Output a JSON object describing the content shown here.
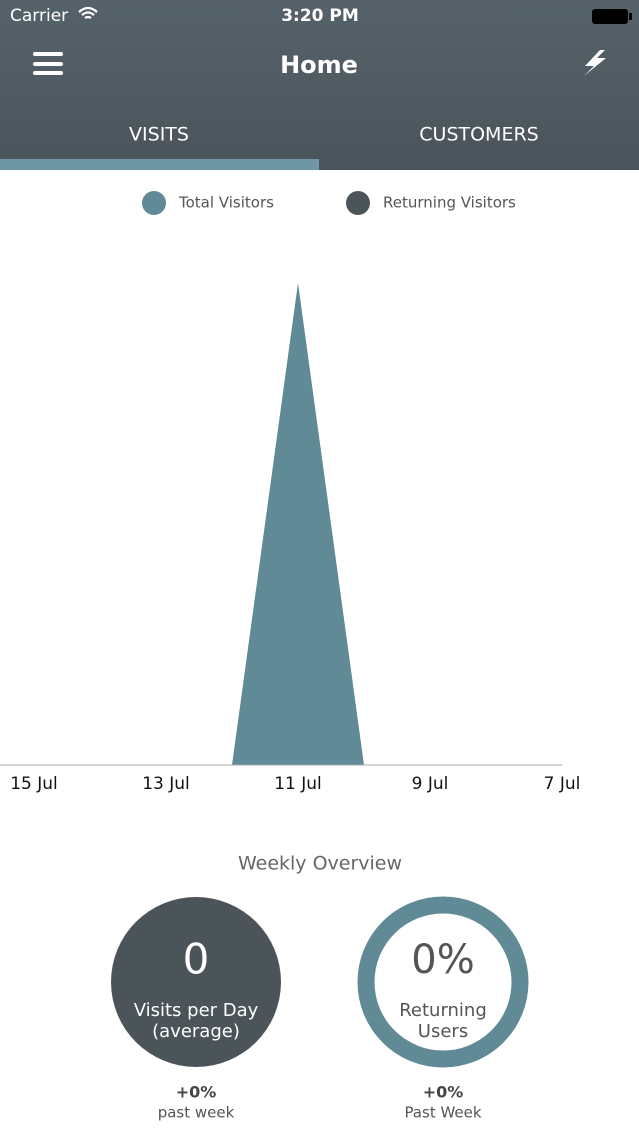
{
  "status_bar": {
    "carrier": "Carrier",
    "time": "3:20 PM"
  },
  "nav": {
    "title": "Home"
  },
  "tabs": [
    "VISITS",
    "CUSTOMERS"
  ],
  "chart_data": {
    "type": "area",
    "categories": [
      "15 Jul",
      null,
      "13 Jul",
      null,
      "11 Jul",
      null,
      "9 Jul",
      null,
      "7 Jul"
    ],
    "series": [
      {
        "name": "Total Visitors",
        "color": "#5f8a96",
        "values": [
          0,
          0,
          0,
          0,
          1,
          0,
          0,
          0,
          0
        ]
      },
      {
        "name": "Returning Visitors",
        "color": "#4b5459",
        "values": [
          0,
          0,
          0,
          0,
          0,
          0,
          0,
          0,
          0
        ]
      }
    ],
    "ylim": [
      0,
      1
    ]
  },
  "overview": {
    "title": "Weekly Overview",
    "cards": [
      {
        "value": "0",
        "label": [
          "Visits per Day",
          "(average)"
        ],
        "change": "+0%",
        "period": "past week"
      },
      {
        "value": "0%",
        "label": [
          "Returning",
          "Users"
        ],
        "change": "+0%",
        "period": "Past Week"
      }
    ]
  }
}
